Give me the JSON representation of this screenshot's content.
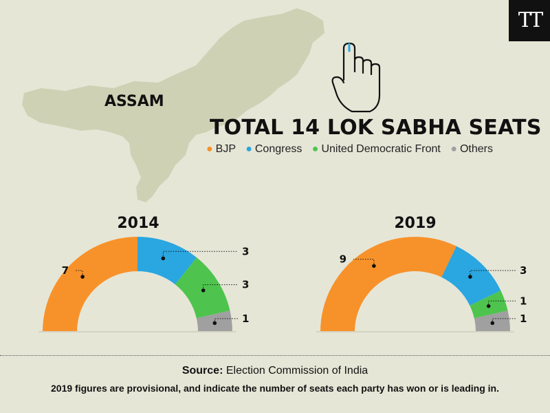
{
  "brand": {
    "logo_text": "TT"
  },
  "map": {
    "region_label": "ASSAM",
    "fill_color": "#cfd1b5"
  },
  "headline": "TOTAL 14 LOK SABHA SEATS",
  "legend": [
    {
      "label": "BJP",
      "color": "#f7922a"
    },
    {
      "label": "Congress",
      "color": "#2aa6e0"
    },
    {
      "label": "United Democratic Front",
      "color": "#4ec44e"
    },
    {
      "label": "Others",
      "color": "#a0a0a0"
    }
  ],
  "footer": {
    "source_label": "Source:",
    "source_text": "Election Commission of India",
    "note": "2019 figures are provisional, and indicate the number of seats each party has won or is leading in."
  },
  "chart_data": [
    {
      "type": "pie",
      "subtype": "semicircle-donut",
      "title": "2014",
      "total": 14,
      "categories": [
        "BJP",
        "Congress",
        "United Democratic Front",
        "Others"
      ],
      "values": [
        7,
        3,
        3,
        1
      ],
      "colors": [
        "#f7922a",
        "#2aa6e0",
        "#4ec44e",
        "#a0a0a0"
      ]
    },
    {
      "type": "pie",
      "subtype": "semicircle-donut",
      "title": "2019",
      "total": 14,
      "categories": [
        "BJP",
        "Congress",
        "United Democratic Front",
        "Others"
      ],
      "values": [
        9,
        3,
        1,
        1
      ],
      "colors": [
        "#f7922a",
        "#2aa6e0",
        "#4ec44e",
        "#a0a0a0"
      ]
    }
  ]
}
